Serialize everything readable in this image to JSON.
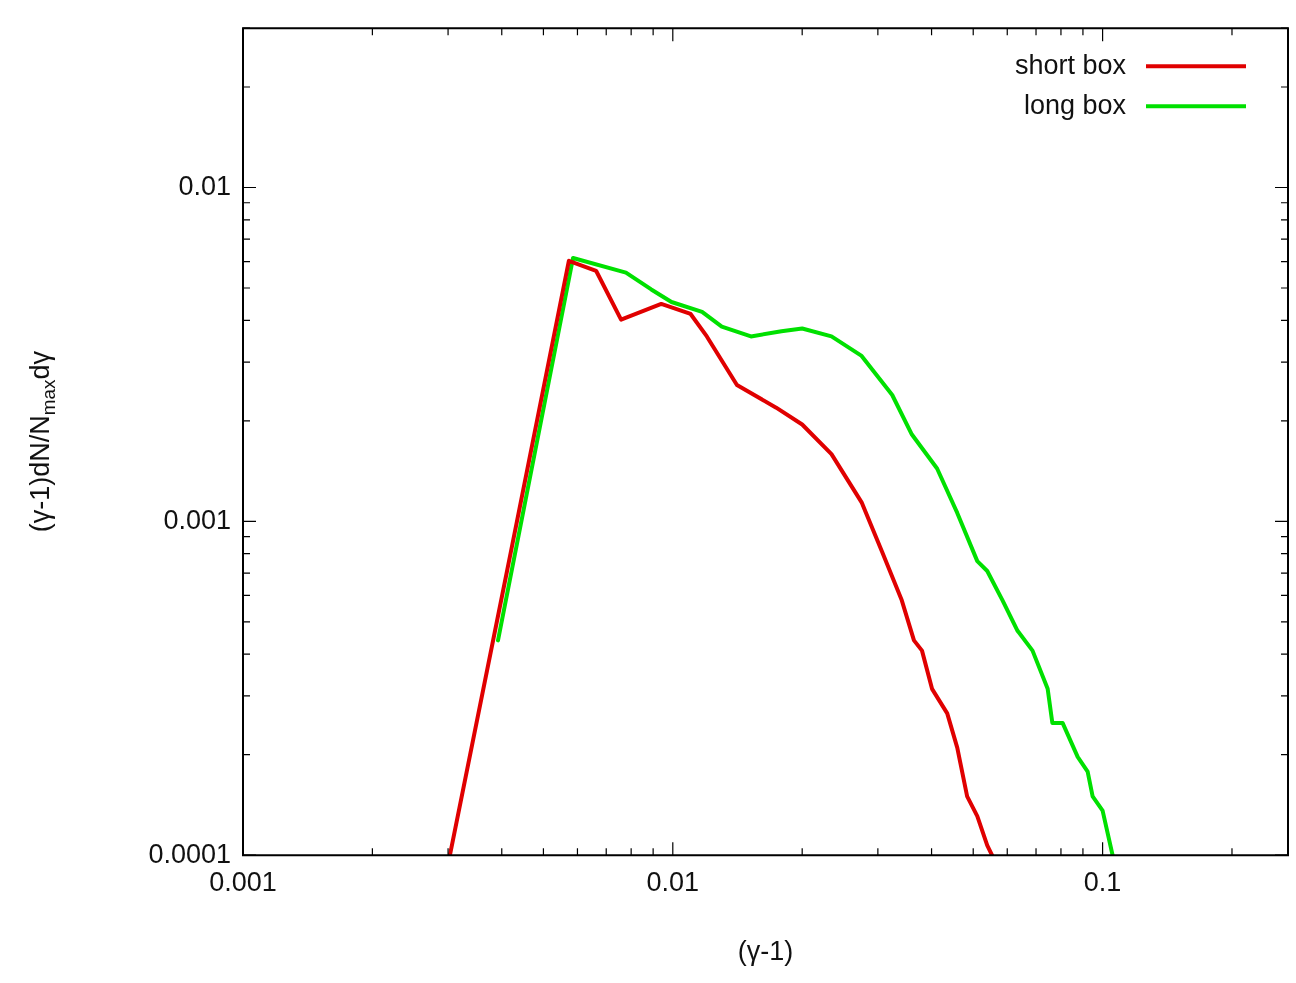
{
  "chart_data": {
    "type": "line",
    "xlabel": "(γ-1)",
    "ylabel": "(γ-1)dN/N$_{max}$dγ",
    "log": "xy",
    "grid": false,
    "legend": "top right",
    "marker": "none",
    "line_style": "solid",
    "xlim": [
      0.001,
      0.27
    ],
    "ylim": [
      0.0001,
      0.03
    ],
    "xticks": [
      0.001,
      {
        "value": 0.002,
        "label": null
      },
      {
        "value": 0.003,
        "label": null
      },
      {
        "value": 0.004,
        "label": null
      },
      {
        "value": 0.005,
        "label": null
      },
      {
        "value": 0.006,
        "label": null
      },
      {
        "value": 0.007,
        "label": null
      },
      {
        "value": 0.008,
        "label": null
      },
      {
        "value": 0.009,
        "label": null
      },
      0.01,
      {
        "value": 0.02,
        "label": null
      },
      {
        "value": 0.03,
        "label": null
      },
      {
        "value": 0.04,
        "label": null
      },
      {
        "value": 0.05,
        "label": null
      },
      {
        "value": 0.06,
        "label": null
      },
      {
        "value": 0.07,
        "label": null
      },
      {
        "value": 0.08,
        "label": null
      },
      {
        "value": 0.09,
        "label": null
      },
      0.1,
      {
        "value": 0.2,
        "label": null
      }
    ],
    "yticks": [
      0.0001,
      {
        "value": 0.0002,
        "label": null
      },
      {
        "value": 0.0003,
        "label": null
      },
      {
        "value": 0.0004,
        "label": null
      },
      {
        "value": 0.0005,
        "label": null
      },
      {
        "value": 0.0006,
        "label": null
      },
      {
        "value": 0.0007,
        "label": null
      },
      {
        "value": 0.0008,
        "label": null
      },
      {
        "value": 0.0009,
        "label": null
      },
      0.001,
      {
        "value": 0.002,
        "label": null
      },
      {
        "value": 0.003,
        "label": null
      },
      {
        "value": 0.004,
        "label": null
      },
      {
        "value": 0.005,
        "label": null
      },
      {
        "value": 0.006,
        "label": null
      },
      {
        "value": 0.007,
        "label": null
      },
      {
        "value": 0.008,
        "label": null
      },
      {
        "value": 0.009,
        "label": null
      },
      0.01,
      {
        "value": 0.02,
        "label": null
      },
      {
        "value": 0.03,
        "label": null
      }
    ],
    "series": [
      {
        "name": "short box",
        "color": "#e00000",
        "x": [
          0.00303,
          0.0042,
          0.00573,
          0.00663,
          0.00758,
          0.0094,
          0.011,
          0.012,
          0.0141,
          0.0174,
          0.02,
          0.0234,
          0.0275,
          0.0307,
          0.0341,
          0.0364,
          0.038,
          0.0401,
          0.0435,
          0.0459,
          0.0484,
          0.0511,
          0.0539,
          0.0553
        ],
        "values": [
          0.0001,
          0.00081,
          0.00603,
          0.00563,
          0.00402,
          0.00448,
          0.00418,
          0.00358,
          0.00256,
          0.00219,
          0.00195,
          0.00159,
          0.00114,
          0.00081,
          0.00058,
          0.00044,
          0.00041,
          0.000315,
          0.000266,
          0.00021,
          0.00015,
          0.000131,
          0.000107,
          0.0001
        ]
      },
      {
        "name": "long box",
        "color": "#00e000",
        "x": [
          0.00392,
          0.00586,
          0.00778,
          0.00891,
          0.00993,
          0.0117,
          0.013,
          0.0152,
          0.0179,
          0.02,
          0.0234,
          0.0275,
          0.0324,
          0.036,
          0.0412,
          0.0459,
          0.0511,
          0.0539,
          0.0585,
          0.0634,
          0.0687,
          0.0745,
          0.0764,
          0.0807,
          0.0875,
          0.0923,
          0.0948,
          0.1,
          0.1055
        ],
        "values": [
          0.00044,
          0.00615,
          0.00556,
          0.00495,
          0.00454,
          0.00424,
          0.00383,
          0.00358,
          0.00371,
          0.00378,
          0.00358,
          0.00313,
          0.00239,
          0.00182,
          0.00144,
          0.00106,
          0.00076,
          0.00071,
          0.00058,
          0.00047,
          0.00041,
          0.000315,
          0.000249,
          0.000249,
          0.000197,
          0.000178,
          0.00015,
          0.000136,
          0.0001
        ]
      }
    ]
  }
}
